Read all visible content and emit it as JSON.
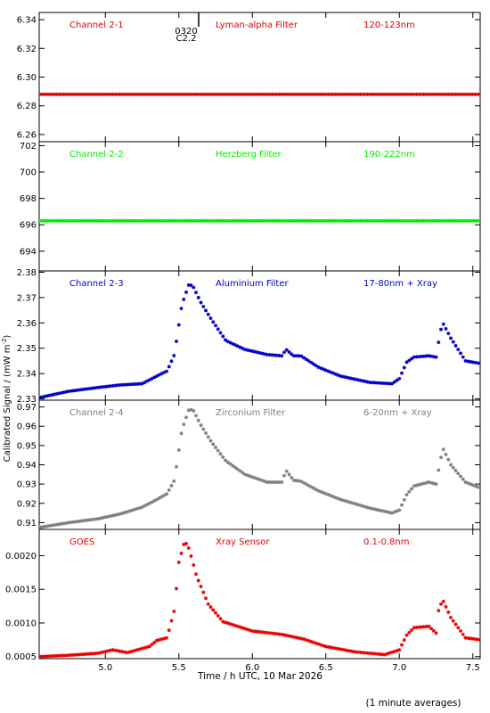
{
  "figure": {
    "ylabel": "Calibrated Signal / (mW m",
    "ylabel_sup": "-2",
    "ylabel_close": ")",
    "xlabel": "Time / h UTC, 10 Mar 2026",
    "footnote": "(1 minute averages)",
    "marker_label_1": "0320",
    "marker_label_2": "C2.2",
    "marker_time": 5.55,
    "xlim": [
      4.55,
      7.55
    ],
    "xticks": [
      5.0,
      5.5,
      6.0,
      6.5,
      7.0,
      7.5
    ],
    "xtick_labels": [
      "5.0",
      "5.5",
      "6.0",
      "6.5",
      "7.0",
      "7.5"
    ]
  },
  "chart_data": [
    {
      "type": "scatter",
      "channel": "Channel 2-1",
      "filter": "Lyman-alpha Filter",
      "band": "120-123nm",
      "color": "#dd0000",
      "ylim": [
        6.255,
        6.345
      ],
      "yticks": [
        6.26,
        6.28,
        6.3,
        6.32,
        6.34
      ],
      "ytick_labels": [
        "6.26",
        "6.28",
        "6.30",
        "6.32",
        "6.34"
      ],
      "x": [
        4.55,
        7.55
      ],
      "y": [
        6.288,
        6.288
      ]
    },
    {
      "type": "scatter",
      "channel": "Channel 2-2",
      "filter": "Herzberg Filter",
      "band": "190-222nm",
      "color": "#00ee00",
      "ylim": [
        692.5,
        702.3
      ],
      "yticks": [
        694,
        696,
        698,
        700,
        702
      ],
      "ytick_labels": [
        "694",
        "696",
        "698",
        "700",
        "702"
      ],
      "x": [
        4.55,
        7.55
      ],
      "y": [
        696.3,
        696.3
      ]
    },
    {
      "type": "scatter",
      "channel": "Channel 2-3",
      "filter": "Aluminium Filter",
      "band": "17-80nm + Xray",
      "color": "#0000cc",
      "ylim": [
        2.3295,
        2.3805
      ],
      "yticks": [
        2.33,
        2.34,
        2.35,
        2.36,
        2.37,
        2.38
      ],
      "ytick_labels": [
        "2.33",
        "2.34",
        "2.35",
        "2.36",
        "2.37",
        "2.38"
      ],
      "x": [
        4.55,
        4.75,
        4.95,
        5.1,
        5.25,
        5.35,
        5.42,
        5.47,
        5.52,
        5.57,
        5.6,
        5.65,
        5.72,
        5.82,
        5.95,
        6.1,
        6.2,
        6.23,
        6.28,
        6.33,
        6.45,
        6.6,
        6.8,
        6.95,
        7.0,
        7.05,
        7.1,
        7.2,
        7.25,
        7.28,
        7.3,
        7.35,
        7.45,
        7.55
      ],
      "y": [
        2.3305,
        2.333,
        2.3345,
        2.3355,
        2.336,
        2.339,
        2.341,
        2.3475,
        2.367,
        2.3755,
        2.374,
        2.368,
        2.3615,
        2.353,
        2.3495,
        2.3475,
        2.347,
        2.3495,
        2.347,
        2.347,
        2.3425,
        2.339,
        2.3365,
        2.336,
        2.338,
        2.3445,
        2.3465,
        2.347,
        2.3465,
        2.357,
        2.3595,
        2.354,
        2.345,
        2.344
      ]
    },
    {
      "type": "scatter",
      "channel": "Channel 2-4",
      "filter": "Zirconium Filter",
      "band": "6-20nm + Xray",
      "color": "#808080",
      "ylim": [
        0.9065,
        0.9735
      ],
      "yticks": [
        0.91,
        0.92,
        0.93,
        0.94,
        0.95,
        0.96,
        0.97
      ],
      "ytick_labels": [
        "0.91",
        "0.92",
        "0.93",
        "0.94",
        "0.95",
        "0.96",
        "0.97"
      ],
      "x": [
        4.55,
        4.75,
        4.95,
        5.1,
        5.25,
        5.35,
        5.42,
        5.47,
        5.52,
        5.57,
        5.6,
        5.65,
        5.72,
        5.82,
        5.95,
        6.1,
        6.2,
        6.23,
        6.28,
        6.33,
        6.45,
        6.6,
        6.8,
        6.95,
        7.0,
        7.05,
        7.1,
        7.2,
        7.25,
        7.28,
        7.3,
        7.35,
        7.45,
        7.55
      ],
      "y": [
        0.9075,
        0.91,
        0.912,
        0.9145,
        0.918,
        0.922,
        0.925,
        0.932,
        0.958,
        0.969,
        0.968,
        0.9605,
        0.952,
        0.942,
        0.935,
        0.931,
        0.931,
        0.937,
        0.932,
        0.9315,
        0.9265,
        0.922,
        0.9175,
        0.915,
        0.9165,
        0.9245,
        0.929,
        0.931,
        0.93,
        0.943,
        0.948,
        0.94,
        0.931,
        0.928
      ]
    },
    {
      "type": "scatter",
      "channel": "GOES",
      "filter": "Xray Sensor",
      "band": "0.1-0.8nm",
      "color": "#ee0000",
      "ylim": [
        0.00047,
        0.00239
      ],
      "yticks": [
        0.0005,
        0.001,
        0.0015,
        0.002
      ],
      "ytick_labels": [
        "0.0005",
        "0.0010",
        "0.0015",
        "0.0020"
      ],
      "x": [
        4.55,
        4.75,
        4.95,
        5.05,
        5.15,
        5.3,
        5.35,
        5.42,
        5.47,
        5.5,
        5.54,
        5.57,
        5.62,
        5.7,
        5.8,
        6.0,
        6.2,
        6.35,
        6.5,
        6.7,
        6.9,
        7.0,
        7.05,
        7.1,
        7.2,
        7.25,
        7.27,
        7.3,
        7.35,
        7.45,
        7.55
      ],
      "y": [
        0.0005,
        0.00052,
        0.00055,
        0.0006,
        0.00056,
        0.00065,
        0.00074,
        0.00078,
        0.0012,
        0.0019,
        0.00222,
        0.0021,
        0.0017,
        0.00128,
        0.00102,
        0.00088,
        0.00083,
        0.00076,
        0.00065,
        0.00057,
        0.00053,
        0.0006,
        0.00082,
        0.00093,
        0.00095,
        0.00085,
        0.00125,
        0.00132,
        0.00108,
        0.00078,
        0.00075
      ]
    }
  ]
}
